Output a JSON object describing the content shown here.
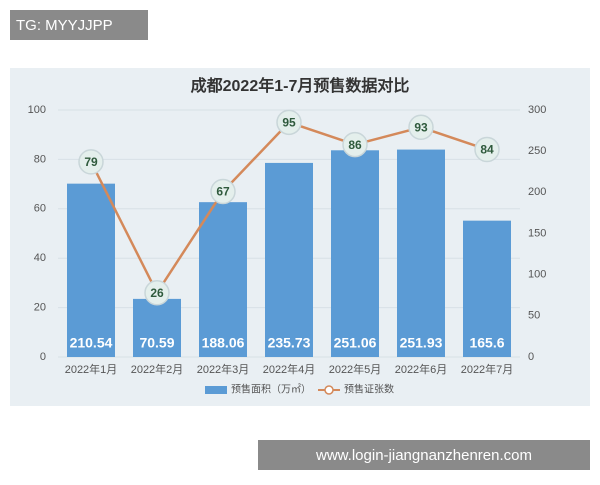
{
  "overlay": {
    "top_left": "TG: MYYJJPP",
    "bottom_right": "www.login-jiangnanzhenren.com"
  },
  "chart_data": {
    "type": "bar",
    "title": "成都2022年1-7月预售数据对比",
    "categories": [
      "2022年1月",
      "2022年2月",
      "2022年3月",
      "2022年4月",
      "2022年5月",
      "2022年6月",
      "2022年7月"
    ],
    "series": [
      {
        "name": "预售面积（万㎡）",
        "type": "bar",
        "axis": "y2",
        "color": "#5b9bd5",
        "values": [
          210.54,
          70.59,
          188.06,
          235.73,
          251.06,
          251.93,
          165.6
        ]
      },
      {
        "name": "预售证张数",
        "type": "line",
        "color": "#d4895a",
        "values": [
          79,
          26,
          67,
          95,
          86,
          93,
          84
        ]
      }
    ],
    "ylim": [
      0,
      100
    ],
    "yticks": [
      0,
      20,
      40,
      60,
      80,
      100
    ],
    "y2lim": [
      0,
      300
    ],
    "y2ticks": [
      0,
      50,
      100,
      150,
      200,
      250,
      300
    ],
    "grid": true,
    "legend": "bottom"
  }
}
